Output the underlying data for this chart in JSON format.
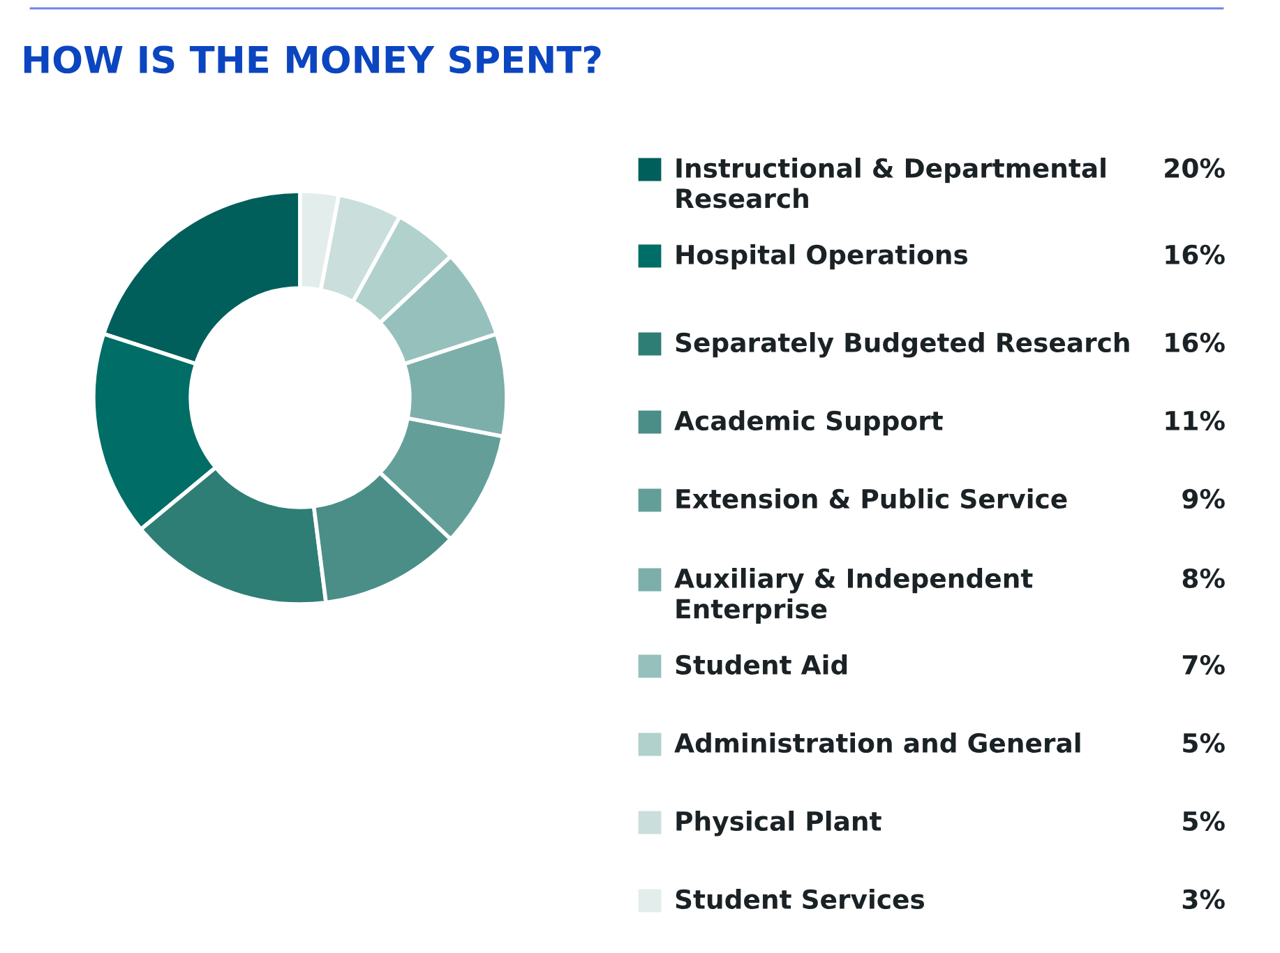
{
  "chart_data": {
    "type": "donut",
    "title": "HOW IS THE MONEY SPENT?",
    "categories": [
      "Instructional & Departmental\nResearch",
      "Hospital Operations",
      "Separately Budgeted Research",
      "Academic Support",
      "Extension & Public Service",
      "Auxiliary & Independent\nEnterprise",
      "Student Aid",
      "Administration and General",
      "Physical Plant",
      "Student Services"
    ],
    "values": [
      20,
      16,
      16,
      11,
      9,
      8,
      7,
      5,
      5,
      3
    ],
    "value_labels": [
      "20%",
      "16%",
      "16%",
      "11%",
      "9%",
      "8%",
      "7%",
      "5%",
      "5%",
      "3%"
    ],
    "colors": [
      "#005f5a",
      "#006e66",
      "#2e7e76",
      "#4a8e87",
      "#639f98",
      "#7cafa9",
      "#96c0bb",
      "#b0d1cc",
      "#cadfdc",
      "#e3eeec"
    ],
    "legend": "right"
  }
}
